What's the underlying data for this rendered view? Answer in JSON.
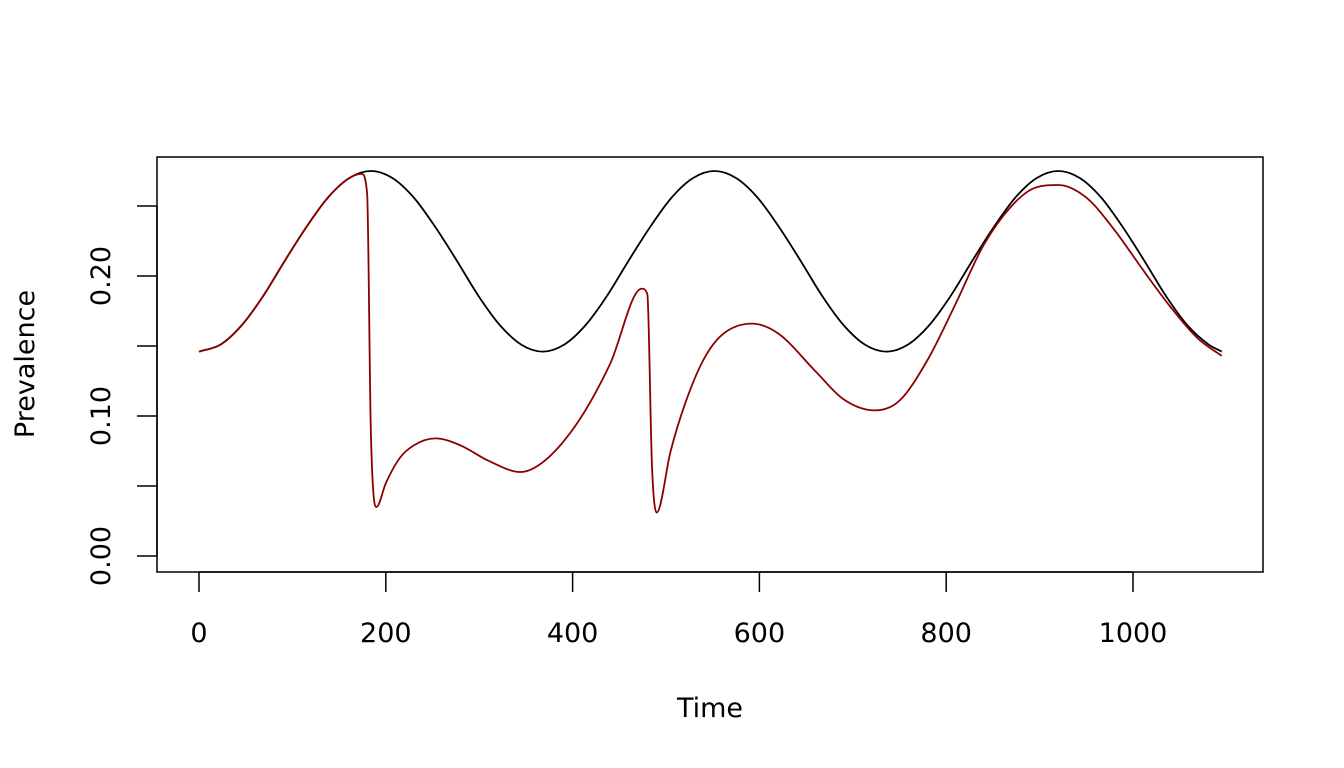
{
  "chart_data": {
    "type": "line",
    "title": "",
    "xlabel": "Time",
    "ylabel": "Prevalence",
    "xlim": [
      -45,
      1140
    ],
    "ylim": [
      -0.011,
      0.285
    ],
    "x_ticks": [
      0,
      200,
      400,
      600,
      800,
      1000
    ],
    "x_tick_labels": [
      "0",
      "200",
      "400",
      "600",
      "800",
      "1000"
    ],
    "y_ticks": [
      0.0,
      0.05,
      0.1,
      0.15,
      0.2,
      0.25
    ],
    "y_tick_labels": [
      "0.00",
      "",
      "0.10",
      "",
      "0.20",
      ""
    ],
    "grid": false,
    "legend": "none",
    "series": [
      {
        "color": "#000000",
        "x": [
          0,
          23,
          46,
          69,
          92,
          115,
          138,
          161,
          184,
          207,
          230,
          253,
          276,
          299,
          322,
          345,
          368,
          391,
          414,
          437,
          460,
          483,
          506,
          529,
          552,
          575,
          598,
          621,
          644,
          667,
          690,
          713,
          736,
          759,
          782,
          805,
          828,
          851,
          874,
          897,
          920,
          943,
          966,
          989,
          1012,
          1035,
          1058,
          1081,
          1095
        ],
        "y": [
          0.146,
          0.151,
          0.165,
          0.186,
          0.211,
          0.235,
          0.256,
          0.27,
          0.275,
          0.27,
          0.256,
          0.235,
          0.211,
          0.186,
          0.165,
          0.151,
          0.146,
          0.151,
          0.165,
          0.186,
          0.211,
          0.235,
          0.256,
          0.27,
          0.275,
          0.27,
          0.256,
          0.235,
          0.211,
          0.186,
          0.165,
          0.151,
          0.146,
          0.151,
          0.165,
          0.186,
          0.211,
          0.235,
          0.256,
          0.27,
          0.275,
          0.27,
          0.256,
          0.235,
          0.211,
          0.186,
          0.165,
          0.151,
          0.146
        ]
      },
      {
        "color": "#8B0000",
        "x": [
          0,
          23,
          46,
          69,
          92,
          115,
          138,
          161,
          174,
          180,
          184,
          190,
          200,
          215,
          230,
          253,
          280,
          310,
          344,
          370,
          407,
          440,
          474,
          480,
          485,
          490,
          505,
          520,
          540,
          560,
          592,
          620,
          660,
          690,
          724,
          750,
          780,
          810,
          840,
          870,
          895,
          920,
          950,
          980,
          1010,
          1040,
          1070,
          1095
        ],
        "y": [
          0.146,
          0.151,
          0.165,
          0.186,
          0.211,
          0.235,
          0.256,
          0.27,
          0.273,
          0.259,
          0.089,
          0.035,
          0.052,
          0.07,
          0.079,
          0.084,
          0.079,
          0.068,
          0.06,
          0.068,
          0.097,
          0.137,
          0.191,
          0.187,
          0.064,
          0.031,
          0.075,
          0.108,
          0.14,
          0.158,
          0.166,
          0.159,
          0.132,
          0.112,
          0.104,
          0.111,
          0.14,
          0.18,
          0.222,
          0.25,
          0.263,
          0.265,
          0.256,
          0.233,
          0.205,
          0.178,
          0.155,
          0.143
        ]
      }
    ]
  }
}
